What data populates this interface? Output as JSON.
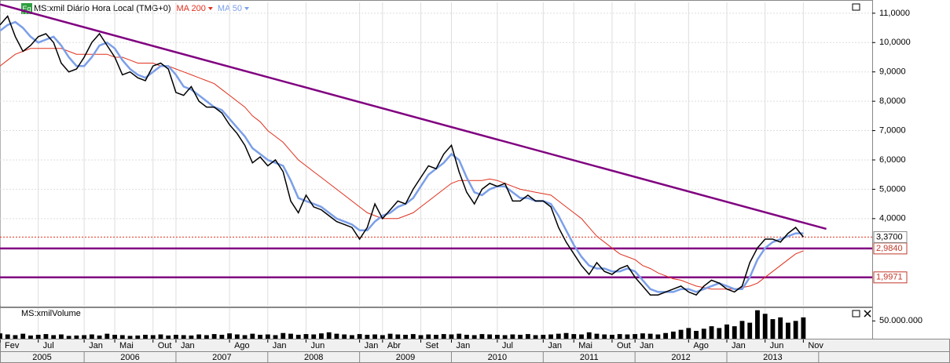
{
  "chart_data": {
    "type": "line",
    "title": "MS:xmil Diário Hora Local (TMG+0)",
    "badge": "Eq",
    "x": [
      "2005-02",
      "2005-03",
      "2005-04",
      "2005-05",
      "2005-06",
      "2005-07",
      "2005-08",
      "2005-09",
      "2005-10",
      "2005-11",
      "2005-12",
      "2006-01",
      "2006-02",
      "2006-03",
      "2006-04",
      "2006-05",
      "2006-06",
      "2006-07",
      "2006-08",
      "2006-09",
      "2006-10",
      "2006-11",
      "2006-12",
      "2007-01",
      "2007-02",
      "2007-03",
      "2007-04",
      "2007-05",
      "2007-06",
      "2007-07",
      "2007-08",
      "2007-09",
      "2007-10",
      "2007-11",
      "2007-12",
      "2008-01",
      "2008-02",
      "2008-03",
      "2008-04",
      "2008-05",
      "2008-06",
      "2008-07",
      "2008-08",
      "2008-09",
      "2008-10",
      "2008-11",
      "2008-12",
      "2009-01",
      "2009-02",
      "2009-03",
      "2009-04",
      "2009-05",
      "2009-06",
      "2009-07",
      "2009-08",
      "2009-09",
      "2009-10",
      "2009-11",
      "2009-12",
      "2010-01",
      "2010-02",
      "2010-03",
      "2010-04",
      "2010-05",
      "2010-06",
      "2010-07",
      "2010-08",
      "2010-09",
      "2010-10",
      "2010-11",
      "2010-12",
      "2011-01",
      "2011-02",
      "2011-03",
      "2011-04",
      "2011-05",
      "2011-06",
      "2011-07",
      "2011-08",
      "2011-09",
      "2011-10",
      "2011-11",
      "2011-12",
      "2012-01",
      "2012-02",
      "2012-03",
      "2012-04",
      "2012-05",
      "2012-06",
      "2012-07",
      "2012-08",
      "2012-09",
      "2012-10",
      "2012-11",
      "2012-12",
      "2013-01",
      "2013-02",
      "2013-03",
      "2013-04",
      "2013-05",
      "2013-06",
      "2013-07",
      "2013-08",
      "2013-09",
      "2013-10",
      "2013-11"
    ],
    "series": [
      {
        "name": "MS:xmil Diário Hora Local (TMG+0)",
        "color": "#000000",
        "values": [
          10.6,
          10.9,
          10.2,
          9.7,
          9.9,
          10.2,
          10.3,
          10.0,
          9.3,
          9.0,
          9.1,
          9.5,
          10.0,
          10.3,
          9.9,
          9.5,
          8.9,
          9.0,
          8.8,
          8.7,
          9.2,
          9.3,
          9.1,
          8.3,
          8.2,
          8.5,
          8.0,
          7.8,
          7.8,
          7.6,
          7.2,
          6.9,
          6.5,
          5.9,
          6.1,
          5.8,
          6.0,
          5.6,
          4.6,
          4.2,
          4.8,
          4.4,
          4.3,
          4.1,
          3.9,
          3.8,
          3.7,
          3.3,
          3.7,
          4.5,
          4.0,
          4.3,
          4.6,
          4.5,
          5.0,
          5.4,
          5.8,
          5.7,
          6.2,
          6.5,
          5.6,
          4.9,
          4.5,
          5.0,
          5.2,
          5.1,
          5.2,
          4.6,
          4.6,
          4.8,
          4.6,
          4.6,
          4.4,
          3.7,
          3.2,
          2.8,
          2.4,
          2.1,
          2.5,
          2.2,
          2.1,
          2.3,
          2.4,
          2.0,
          1.7,
          1.4,
          1.4,
          1.5,
          1.6,
          1.7,
          1.5,
          1.4,
          1.7,
          1.9,
          1.8,
          1.6,
          1.5,
          1.7,
          2.5,
          3.0,
          3.3,
          3.3,
          3.2,
          3.5,
          3.7,
          3.37
        ]
      },
      {
        "name": "MA 200",
        "color": "#e0301e",
        "values": [
          9.2,
          9.4,
          9.6,
          9.7,
          9.8,
          9.8,
          9.8,
          9.8,
          9.8,
          9.7,
          9.6,
          9.6,
          9.6,
          9.6,
          9.6,
          9.5,
          9.5,
          9.4,
          9.3,
          9.3,
          9.3,
          9.2,
          9.2,
          9.1,
          9.0,
          8.9,
          8.8,
          8.7,
          8.6,
          8.4,
          8.2,
          8.0,
          7.8,
          7.5,
          7.3,
          7.0,
          6.8,
          6.6,
          6.3,
          6.0,
          5.8,
          5.6,
          5.4,
          5.2,
          5.0,
          4.8,
          4.6,
          4.4,
          4.2,
          4.1,
          4.0,
          4.0,
          4.0,
          4.1,
          4.2,
          4.4,
          4.6,
          4.8,
          5.0,
          5.2,
          5.3,
          5.3,
          5.3,
          5.3,
          5.35,
          5.3,
          5.2,
          5.1,
          5.0,
          4.95,
          4.9,
          4.85,
          4.8,
          4.6,
          4.4,
          4.2,
          4.0,
          3.7,
          3.4,
          3.2,
          3.0,
          2.8,
          2.7,
          2.6,
          2.4,
          2.3,
          2.15,
          2.05,
          1.95,
          1.9,
          1.8,
          1.7,
          1.65,
          1.6,
          1.6,
          1.6,
          1.6,
          1.65,
          1.7,
          1.8,
          2.0,
          2.2,
          2.4,
          2.6,
          2.8,
          2.9
        ]
      },
      {
        "name": "MA 50",
        "color": "#7b9fe8",
        "values": [
          10.4,
          10.6,
          10.7,
          10.5,
          10.2,
          10.0,
          10.1,
          10.2,
          9.9,
          9.5,
          9.2,
          9.2,
          9.5,
          9.9,
          10.0,
          9.8,
          9.4,
          9.1,
          8.9,
          8.8,
          9.0,
          9.2,
          9.2,
          8.9,
          8.5,
          8.4,
          8.2,
          8.0,
          7.8,
          7.7,
          7.4,
          7.1,
          6.8,
          6.4,
          6.2,
          6.0,
          5.9,
          5.8,
          5.3,
          4.7,
          4.6,
          4.5,
          4.4,
          4.2,
          4.0,
          3.9,
          3.8,
          3.6,
          3.6,
          3.9,
          4.1,
          4.2,
          4.4,
          4.5,
          4.7,
          5.1,
          5.5,
          5.7,
          5.9,
          6.2,
          6.0,
          5.4,
          4.9,
          4.8,
          5.0,
          5.1,
          5.1,
          4.9,
          4.7,
          4.7,
          4.6,
          4.6,
          4.5,
          4.1,
          3.6,
          3.1,
          2.7,
          2.4,
          2.3,
          2.3,
          2.2,
          2.2,
          2.3,
          2.2,
          1.9,
          1.6,
          1.5,
          1.5,
          1.5,
          1.6,
          1.6,
          1.5,
          1.6,
          1.7,
          1.8,
          1.7,
          1.6,
          1.6,
          2.0,
          2.6,
          3.0,
          3.2,
          3.3,
          3.4,
          3.5,
          3.5
        ]
      }
    ],
    "xlim": [
      "2005-02",
      "2014-08"
    ],
    "xticks": [
      {
        "value": "2005-02",
        "label": "Fev"
      },
      {
        "value": "2005-07",
        "label": "Jul"
      },
      {
        "value": "2006-01",
        "label": "Jan"
      },
      {
        "value": "2006-05",
        "label": "Mai"
      },
      {
        "value": "2006-10",
        "label": "Out"
      },
      {
        "value": "2007-01",
        "label": "Jan"
      },
      {
        "value": "2007-08",
        "label": "Ago"
      },
      {
        "value": "2008-01",
        "label": "Jan"
      },
      {
        "value": "2008-06",
        "label": "Jun"
      },
      {
        "value": "2009-01",
        "label": "Jan"
      },
      {
        "value": "2009-04",
        "label": "Abr"
      },
      {
        "value": "2009-09",
        "label": "Set"
      },
      {
        "value": "2010-01",
        "label": "Jan"
      },
      {
        "value": "2010-07",
        "label": "Jul"
      },
      {
        "value": "2011-01",
        "label": "Jan"
      },
      {
        "value": "2011-05",
        "label": "Mai"
      },
      {
        "value": "2011-10",
        "label": "Out"
      },
      {
        "value": "2012-01",
        "label": "Jan"
      },
      {
        "value": "2012-08",
        "label": "Ago"
      },
      {
        "value": "2013-01",
        "label": "Jan"
      },
      {
        "value": "2013-06",
        "label": "Jun"
      },
      {
        "value": "2013-11",
        "label": "Nov"
      }
    ],
    "years": [
      "2005",
      "2006",
      "2007",
      "2008",
      "2009",
      "2010",
      "2011",
      "2012",
      "2013"
    ],
    "ylim": [
      1.03,
      11.37
    ],
    "yticks": [
      {
        "value": 4,
        "label": "4,0000"
      },
      {
        "value": 5,
        "label": "5,0000"
      },
      {
        "value": 6,
        "label": "6,0000"
      },
      {
        "value": 7,
        "label": "7,0000"
      },
      {
        "value": 8,
        "label": "8,0000"
      },
      {
        "value": 9,
        "label": "9,0000"
      },
      {
        "value": 10,
        "label": "10,0000"
      },
      {
        "value": 11,
        "label": "11,0000"
      }
    ],
    "grid": true,
    "trendline": {
      "color": "#800080",
      "x": [
        "2005-02",
        "2014-02"
      ],
      "y": [
        11.3,
        3.65
      ]
    },
    "levels": [
      {
        "value": 2.984,
        "label": "2,9840",
        "color": "#800080"
      },
      {
        "value": 1.9971,
        "label": "1,9971",
        "color": "#800080"
      }
    ],
    "last_price": {
      "value": 3.37,
      "label": "3,3700",
      "color": "#e0301e"
    },
    "volume": {
      "name": "MS:xmilVolume",
      "color": "#000000",
      "ylim": [
        0,
        86000000
      ],
      "yticks": [
        {
          "value": 50000000,
          "label": "50.000.000"
        }
      ],
      "values": [
        15000000,
        12000000,
        10000000,
        14000000,
        9000000,
        11000000,
        13000000,
        10000000,
        12000000,
        8000000,
        9000000,
        10000000,
        12000000,
        9000000,
        14000000,
        11000000,
        10000000,
        8000000,
        9000000,
        11000000,
        10000000,
        12000000,
        9000000,
        11000000,
        10000000,
        9000000,
        12000000,
        10000000,
        13000000,
        11000000,
        15000000,
        12000000,
        10000000,
        14000000,
        11000000,
        12000000,
        10000000,
        16000000,
        14000000,
        11000000,
        13000000,
        12000000,
        15000000,
        18000000,
        14000000,
        12000000,
        10000000,
        13000000,
        11000000,
        12000000,
        10000000,
        14000000,
        12000000,
        11000000,
        13000000,
        10000000,
        12000000,
        11000000,
        13000000,
        12000000,
        14000000,
        11000000,
        10000000,
        13000000,
        12000000,
        11000000,
        10000000,
        12000000,
        11000000,
        13000000,
        10000000,
        11000000,
        12000000,
        14000000,
        16000000,
        13000000,
        12000000,
        18000000,
        14000000,
        12000000,
        11000000,
        13000000,
        12000000,
        13000000,
        15000000,
        14000000,
        12000000,
        16000000,
        20000000,
        25000000,
        30000000,
        22000000,
        28000000,
        35000000,
        30000000,
        40000000,
        35000000,
        50000000,
        45000000,
        80000000,
        70000000,
        55000000,
        60000000,
        45000000,
        50000000,
        60000000
      ]
    }
  }
}
